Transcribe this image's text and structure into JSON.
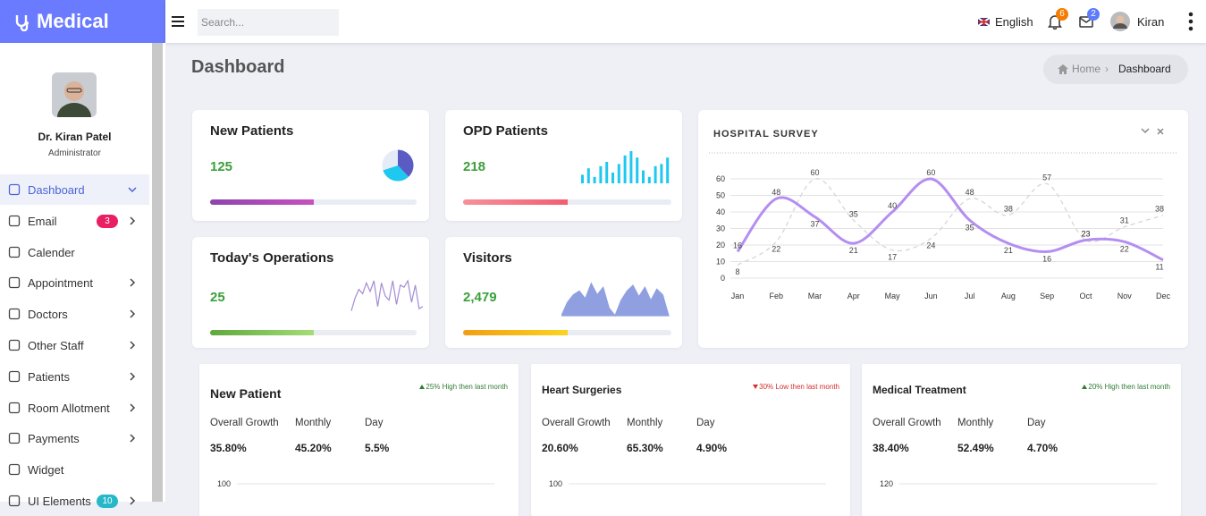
{
  "brand": "Medical",
  "header": {
    "search_placeholder": "Search...",
    "language": "English",
    "notifications": "6",
    "messages": "2",
    "user": "Kiran"
  },
  "sidebar": {
    "name": "Dr. Kiran Patel",
    "role": "Administrator",
    "menu": [
      {
        "label": "Dashboard",
        "active": true
      },
      {
        "label": "Email",
        "badge": "3",
        "badge_color": "#e91e63",
        "submenu": true
      },
      {
        "label": "Calender"
      },
      {
        "label": "Appointment",
        "submenu": true
      },
      {
        "label": "Doctors",
        "submenu": true
      },
      {
        "label": "Other Staff",
        "submenu": true
      },
      {
        "label": "Patients",
        "submenu": true
      },
      {
        "label": "Room Allotment",
        "submenu": true
      },
      {
        "label": "Payments",
        "submenu": true
      },
      {
        "label": "Widget"
      },
      {
        "label": "UI Elements",
        "badge": "10",
        "badge_color": "#26b8c8",
        "submenu": true
      }
    ]
  },
  "page": {
    "title": "Dashboard",
    "breadcrumb": [
      "Home",
      "Dashboard"
    ]
  },
  "stats": [
    {
      "title": "New Patients",
      "value": "125",
      "progress": 50,
      "progress_colors": [
        "#8e44ad",
        "#c850c0"
      ],
      "chart": {
        "type": "pie",
        "values": [
          38,
          32,
          30
        ],
        "colors": [
          "#5a5cc4",
          "#1ec8f0",
          "#e6ecf7"
        ]
      }
    },
    {
      "title": "OPD Patients",
      "value": "218",
      "progress": 50,
      "progress_colors": [
        "#f7909a",
        "#f45c70"
      ],
      "chart": {
        "type": "bar",
        "values": [
          8,
          14,
          6,
          16,
          20,
          10,
          18,
          26,
          30,
          24,
          12,
          6,
          16,
          18,
          24
        ],
        "color": "#1ec8f0"
      }
    },
    {
      "title": "Today's Operations",
      "value": "25",
      "progress": 50,
      "progress_colors": [
        "#5ea83c",
        "#a6dc79"
      ],
      "chart": {
        "type": "line",
        "values": [
          2,
          14,
          22,
          18,
          28,
          20,
          30,
          6,
          28,
          16,
          12,
          30,
          8,
          26,
          24,
          30,
          10,
          26,
          4,
          6
        ],
        "color": "#a58bd6"
      }
    },
    {
      "title": "Visitors",
      "value": "2,479",
      "progress": 50,
      "progress_colors": [
        "#f39c12",
        "#f9d423"
      ],
      "chart": {
        "type": "area",
        "values": [
          0,
          14,
          22,
          26,
          18,
          34,
          22,
          30,
          8,
          0,
          16,
          26,
          32,
          20,
          30,
          16,
          28,
          22,
          0
        ],
        "color": "#8f9fe0"
      }
    }
  ],
  "survey": {
    "title": "HOSPITAL SURVEY",
    "chart_data": {
      "type": "line",
      "categories": [
        "Jan",
        "Feb",
        "Mar",
        "Apr",
        "May",
        "Jun",
        "Jul",
        "Aug",
        "Sep",
        "Oct",
        "Nov",
        "Dec"
      ],
      "series": [
        {
          "color": "#b48ef0",
          "dashed": false,
          "values": [
            16,
            48,
            37,
            21,
            40,
            60,
            35,
            21,
            16,
            23,
            22,
            11
          ]
        },
        {
          "color": "#d6d6d6",
          "dashed": true,
          "values": [
            8,
            22,
            60,
            35,
            17,
            24,
            48,
            38,
            57,
            23,
            31,
            38
          ]
        }
      ],
      "ylim": [
        0,
        60
      ],
      "yticks": [
        0,
        10,
        20,
        30,
        40,
        50,
        60
      ],
      "grid": true
    }
  },
  "growth_cards": [
    {
      "title": "New Patient",
      "trend": "25% High then last month",
      "direction": "up",
      "stats": [
        {
          "label": "Overall Growth",
          "value": "35.80%"
        },
        {
          "label": "Monthly",
          "value": "45.20%"
        },
        {
          "label": "Day",
          "value": "5.5%"
        }
      ],
      "yticks": [
        100
      ]
    },
    {
      "title": "Heart Surgeries",
      "trend": "30% Low then last month",
      "direction": "down",
      "stats": [
        {
          "label": "Overall Growth",
          "value": "20.60%"
        },
        {
          "label": "Monthly",
          "value": "65.30%"
        },
        {
          "label": "Day",
          "value": "4.90%"
        }
      ],
      "yticks": [
        100
      ]
    },
    {
      "title": "Medical Treatment",
      "trend": "20% High then last month",
      "direction": "up",
      "stats": [
        {
          "label": "Overall Growth",
          "value": "38.40%"
        },
        {
          "label": "Monthly",
          "value": "52.49%"
        },
        {
          "label": "Day",
          "value": "4.70%"
        }
      ],
      "yticks": [
        120
      ]
    }
  ]
}
